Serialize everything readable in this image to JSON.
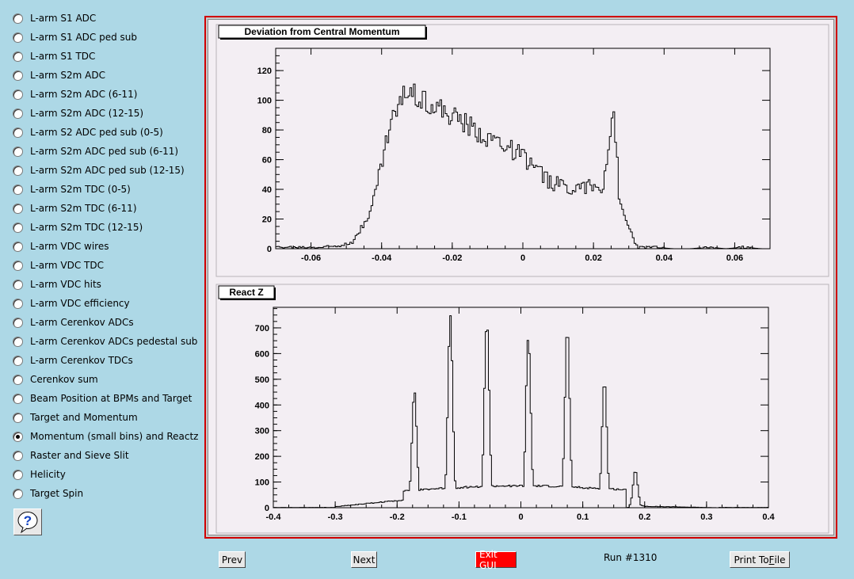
{
  "sidebar": {
    "items": [
      {
        "label": "L-arm S1 ADC",
        "checked": false
      },
      {
        "label": "L-arm S1 ADC ped sub",
        "checked": false
      },
      {
        "label": "L-arm S1 TDC",
        "checked": false
      },
      {
        "label": "L-arm S2m ADC",
        "checked": false
      },
      {
        "label": "L-arm S2m ADC (6-11)",
        "checked": false
      },
      {
        "label": "L-arm S2m ADC (12-15)",
        "checked": false
      },
      {
        "label": "L-arm S2 ADC ped sub (0-5)",
        "checked": false
      },
      {
        "label": "L-arm S2m ADC ped sub (6-11)",
        "checked": false
      },
      {
        "label": "L-arm S2m ADC ped sub (12-15)",
        "checked": false
      },
      {
        "label": "L-arm S2m TDC (0-5)",
        "checked": false
      },
      {
        "label": "L-arm S2m TDC (6-11)",
        "checked": false
      },
      {
        "label": "L-arm S2m TDC (12-15)",
        "checked": false
      },
      {
        "label": "L-arm VDC wires",
        "checked": false
      },
      {
        "label": "L-arm VDC TDC",
        "checked": false
      },
      {
        "label": "L-arm VDC hits",
        "checked": false
      },
      {
        "label": "L-arm VDC efficiency",
        "checked": false
      },
      {
        "label": "L-arm Cerenkov ADCs",
        "checked": false
      },
      {
        "label": "L-arm Cerenkov ADCs pedestal sub",
        "checked": false
      },
      {
        "label": "L-arm Cerenkov TDCs",
        "checked": false
      },
      {
        "label": "Cerenkov sum",
        "checked": false
      },
      {
        "label": "Beam Position at BPMs and Target",
        "checked": false
      },
      {
        "label": "Target and Momentum",
        "checked": false
      },
      {
        "label": "Momentum (small bins) and Reactz",
        "checked": true
      },
      {
        "label": "Raster and Sieve Slit",
        "checked": false
      },
      {
        "label": "Helicity",
        "checked": false
      },
      {
        "label": "Target Spin",
        "checked": false
      }
    ],
    "help_icon": "question-mark-icon"
  },
  "buttons": {
    "prev": "Prev",
    "next": "Next",
    "exit": "Exit GUI",
    "print_pre": "Print To ",
    "print_ul": "F",
    "print_post": "ile"
  },
  "run_label": "Run #1310",
  "colors": {
    "frame": "#d00000",
    "exit": "#ff0000",
    "background": "#add8e6"
  },
  "chart_data": [
    {
      "type": "histogram",
      "title": "Deviation from Central Momentum",
      "xlim": [
        -0.07,
        0.07
      ],
      "ylim": [
        0,
        135
      ],
      "x_ticks": [
        -0.06,
        -0.04,
        -0.02,
        0,
        0.02,
        0.04,
        0.06
      ],
      "x_tick_labels": [
        "-0.06",
        "-0.04",
        "-0.02",
        "0",
        "0.02",
        "0.04",
        "0.06"
      ],
      "y_ticks": [
        0,
        20,
        40,
        60,
        80,
        100,
        120
      ],
      "y_tick_labels": [
        "0",
        "20",
        "40",
        "60",
        "80",
        "100",
        "120"
      ],
      "bin_width": 0.005,
      "x": [
        -0.0675,
        -0.0625,
        -0.0575,
        -0.0525,
        -0.0475,
        -0.0425,
        -0.0375,
        -0.0325,
        -0.0275,
        -0.0225,
        -0.0175,
        -0.0125,
        -0.0075,
        -0.0025,
        0.0025,
        0.0075,
        0.0125,
        0.0175,
        0.0225,
        0.0257,
        0.0275,
        0.0325,
        0.0375,
        0.0425,
        0.0475,
        0.0525,
        0.0575,
        0.0625,
        0.0675
      ],
      "values": [
        1,
        1,
        1,
        2,
        6,
        30,
        85,
        108,
        100,
        92,
        86,
        78,
        73,
        66,
        57,
        45,
        42,
        42,
        40,
        95,
        28,
        1,
        1,
        0,
        0,
        1,
        0,
        1,
        0
      ]
    },
    {
      "type": "histogram",
      "title": "React Z",
      "xlim": [
        -0.4,
        0.4
      ],
      "ylim": [
        0,
        780
      ],
      "x_ticks": [
        -0.4,
        -0.3,
        -0.2,
        -0.1,
        0,
        0.1,
        0.2,
        0.3,
        0.4
      ],
      "x_tick_labels": [
        "-0.4",
        "-0.3",
        "-0.2",
        "-0.1",
        "0",
        "0.1",
        "0.2",
        "0.3",
        "0.4"
      ],
      "y_ticks": [
        0,
        100,
        200,
        300,
        400,
        500,
        600,
        700
      ],
      "y_tick_labels": [
        "0",
        "100",
        "200",
        "300",
        "400",
        "500",
        "600",
        "700"
      ],
      "bin_width": 0.005,
      "peaks": [
        {
          "x": -0.172,
          "value": 455
        },
        {
          "x": -0.114,
          "value": 745
        },
        {
          "x": -0.055,
          "value": 730
        },
        {
          "x": 0.012,
          "value": 665
        },
        {
          "x": 0.075,
          "value": 690
        },
        {
          "x": 0.135,
          "value": 495
        },
        {
          "x": 0.185,
          "value": 145
        }
      ],
      "valleys": [
        {
          "x": -0.143,
          "value": 80
        },
        {
          "x": -0.085,
          "value": 90
        },
        {
          "x": -0.022,
          "value": 65
        },
        {
          "x": 0.044,
          "value": 55
        },
        {
          "x": 0.105,
          "value": 70
        },
        {
          "x": 0.162,
          "value": 40
        }
      ],
      "tail_left": [
        {
          "x": -0.3,
          "value": 2
        },
        {
          "x": -0.25,
          "value": 10
        },
        {
          "x": -0.22,
          "value": 30
        },
        {
          "x": -0.2,
          "value": 25
        }
      ],
      "tail_right": [
        {
          "x": 0.21,
          "value": 5
        },
        {
          "x": 0.25,
          "value": 2
        },
        {
          "x": 0.35,
          "value": 1
        }
      ]
    }
  ]
}
